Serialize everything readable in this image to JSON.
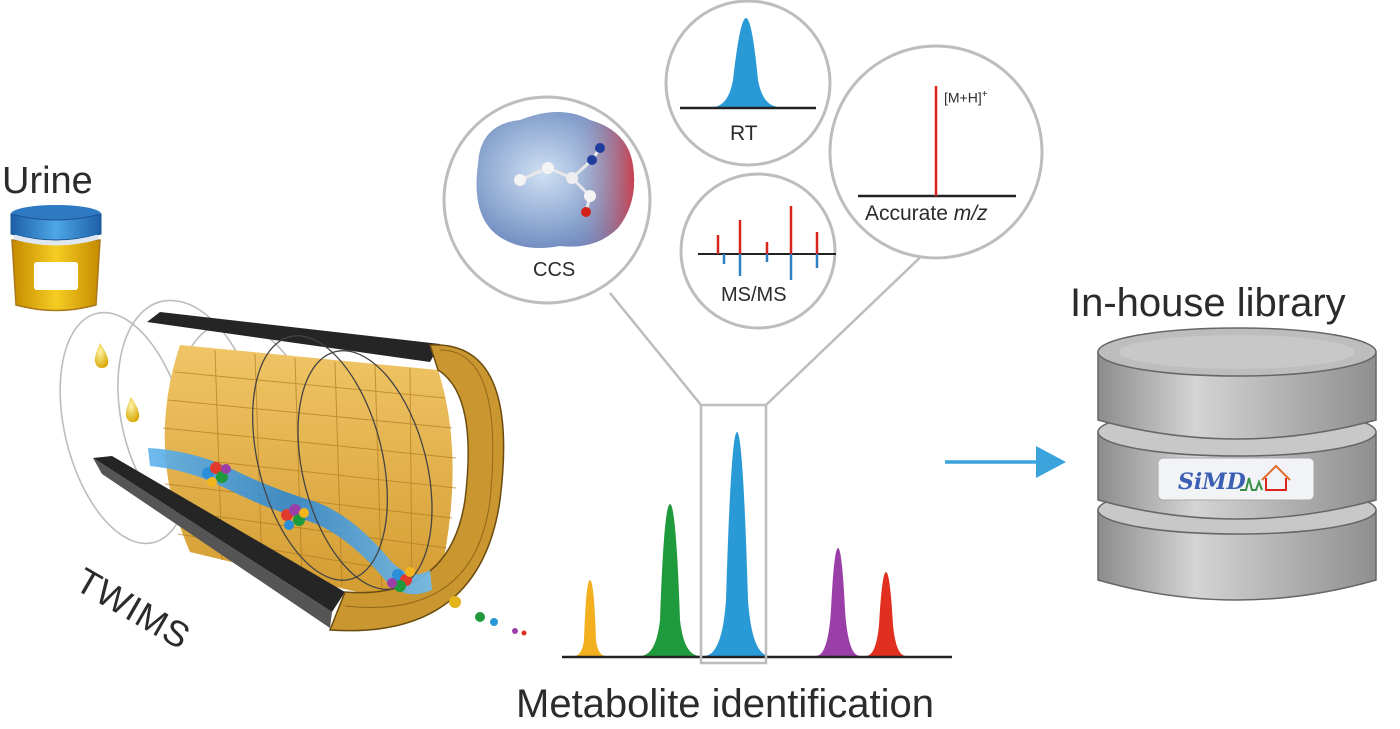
{
  "figure": {
    "sample_label": "Urine",
    "instrument_label": "TWIMS",
    "library_label": "In-house library",
    "library_logo_text": "SiMD",
    "workflow_label": "Metabolite identification",
    "evidence_panels": [
      {
        "label": "CCS"
      },
      {
        "label": "RT"
      },
      {
        "label": "MS/MS"
      },
      {
        "label": "Accurate m/z",
        "label_plain": "Accurate ",
        "label_italic": "m/z",
        "ion_annotation": "[M+H]+"
      }
    ]
  },
  "colors": {
    "peak_colors": [
      "#f2b01e",
      "#1f9a3c",
      "#2a9ad6",
      "#9b3fa8",
      "#e1301f"
    ],
    "arrow": "#3aa3dc",
    "spectrum_red": "#d9261c",
    "spectrum_blue": "#2f7fc4",
    "tube_gold": "#d6a236",
    "tube_dark": "#2a2a2a",
    "database_gray": "#a7a7a7"
  },
  "icons": {
    "urine-cup-icon": "container with yellow liquid",
    "droplet-icon": "yellow droplet",
    "database-icon": "stacked cylinder"
  }
}
